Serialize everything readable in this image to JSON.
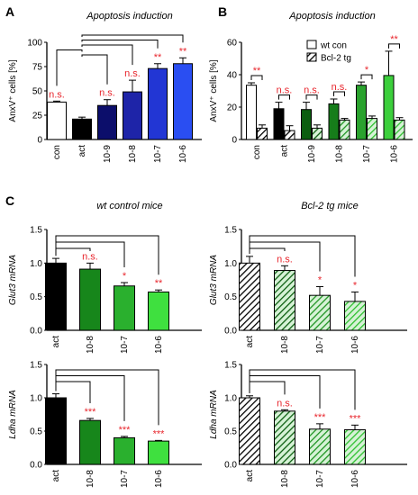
{
  "panels": [
    "A",
    "B",
    "C"
  ],
  "colors": {
    "black": "#000000",
    "white": "#ffffff",
    "sig": "#e8252c",
    "bracket": "#000000"
  },
  "chart_data": [
    {
      "type": "bar",
      "panel": "A",
      "title": "Apoptosis induction",
      "ylabel": "AnxV⁺ cells [%]",
      "ylim": [
        0,
        100
      ],
      "yticks": [
        0,
        25,
        50,
        75,
        100
      ],
      "categories": [
        "con",
        "act",
        "10-9",
        "10-8",
        "10-7",
        "10-6"
      ],
      "values": [
        38.5,
        21,
        35,
        49,
        73,
        78
      ],
      "errors": [
        1,
        2,
        6,
        12,
        5,
        6
      ],
      "colors": [
        "#ffffff",
        "#000000",
        "#0c0e6b",
        "#1e24a8",
        "#2236d4",
        "#2a4ef2"
      ],
      "significance": [
        "n.s.",
        "",
        "n.s.",
        "n.s.",
        "**",
        "**"
      ],
      "sig_color": [
        "#e8252c",
        "",
        "#e8252c",
        "#e8252c",
        "#e8252c",
        "#e8252c"
      ]
    },
    {
      "type": "bar",
      "panel": "B",
      "title": "Apoptosis induction",
      "ylabel": "AnxV⁺ cells [%]",
      "ylim": [
        0,
        60
      ],
      "yticks": [
        0,
        20,
        40,
        60
      ],
      "categories": [
        "con",
        "act",
        "10-9",
        "10-8",
        "10-7",
        "10-6"
      ],
      "legend": [
        "wt con",
        "Bcl-2 tg"
      ],
      "series": [
        {
          "name": "wt con",
          "values": [
            33.5,
            19,
            18.5,
            22,
            33.5,
            39.5
          ],
          "errors": [
            1.5,
            4,
            4.5,
            3,
            2,
            15
          ]
        },
        {
          "name": "Bcl-2 tg",
          "values": [
            7,
            5.5,
            7,
            12,
            13,
            12
          ],
          "errors": [
            2,
            3,
            2,
            1,
            1.5,
            1.5
          ]
        }
      ],
      "wt_colors": [
        "#ffffff",
        "#000000",
        "#0c5e10",
        "#167d1a",
        "#2aa22e",
        "#3ccf3c"
      ],
      "tg_colors": [
        "#000000",
        "#000000",
        "#0c5e10",
        "#167d1a",
        "#2aa22e",
        "#3ccf3c"
      ],
      "significance": [
        "**",
        "n.s.",
        "n.s.",
        "n.s.",
        "*",
        "**"
      ]
    },
    {
      "type": "bar",
      "panel": "C1",
      "title": "wt control mice",
      "ylabel": "Glut3 mRNA",
      "ylim": [
        0,
        1.5
      ],
      "yticks": [
        "0.0",
        "0.5",
        "1.0",
        "1.5"
      ],
      "categories": [
        "act",
        "10-8",
        "10-7",
        "10-6"
      ],
      "values": [
        1.0,
        0.91,
        0.66,
        0.57
      ],
      "errors": [
        0.07,
        0.09,
        0.05,
        0.03
      ],
      "colors": [
        "#000000",
        "#17861b",
        "#2ab02e",
        "#3fe03f"
      ],
      "significance": [
        "",
        "n.s.",
        "*",
        "**"
      ],
      "hatched": false
    },
    {
      "type": "bar",
      "panel": "C2",
      "title": "Bcl-2 tg mice",
      "ylabel": "Glut3 mRNA",
      "ylim": [
        0,
        1.5
      ],
      "yticks": [
        "0.0",
        "0.5",
        "1.0",
        "1.5"
      ],
      "categories": [
        "act",
        "10-8",
        "10-7",
        "10-6"
      ],
      "values": [
        1.0,
        0.89,
        0.52,
        0.43
      ],
      "errors": [
        0.1,
        0.07,
        0.13,
        0.14
      ],
      "colors": [
        "#000000",
        "#17861b",
        "#2ab02e",
        "#3fe03f"
      ],
      "significance": [
        "",
        "n.s.",
        "*",
        "*"
      ],
      "hatched": true
    },
    {
      "type": "bar",
      "panel": "C3",
      "title": "",
      "ylabel": "Ldha mRNA",
      "ylim": [
        0,
        1.5
      ],
      "yticks": [
        "0.0",
        "0.5",
        "1.0",
        "1.5"
      ],
      "categories": [
        "act",
        "10-8",
        "10-7",
        "10-6"
      ],
      "values": [
        1.0,
        0.66,
        0.4,
        0.35
      ],
      "errors": [
        0.06,
        0.03,
        0.02,
        0.01
      ],
      "colors": [
        "#000000",
        "#17861b",
        "#2ab02e",
        "#3fe03f"
      ],
      "significance": [
        "",
        "***",
        "***",
        "***"
      ],
      "hatched": false
    },
    {
      "type": "bar",
      "panel": "C4",
      "title": "",
      "ylabel": "Ldha mRNA",
      "ylim": [
        0,
        1.5
      ],
      "yticks": [
        "0.0",
        "0.5",
        "1.0",
        "1.5"
      ],
      "categories": [
        "act",
        "10-8",
        "10-7",
        "10-6"
      ],
      "values": [
        1.0,
        0.8,
        0.53,
        0.52
      ],
      "errors": [
        0.03,
        0.02,
        0.08,
        0.07
      ],
      "colors": [
        "#000000",
        "#17861b",
        "#2ab02e",
        "#3fe03f"
      ],
      "significance": [
        "",
        "n.s.",
        "***",
        "***"
      ],
      "hatched": true
    }
  ]
}
